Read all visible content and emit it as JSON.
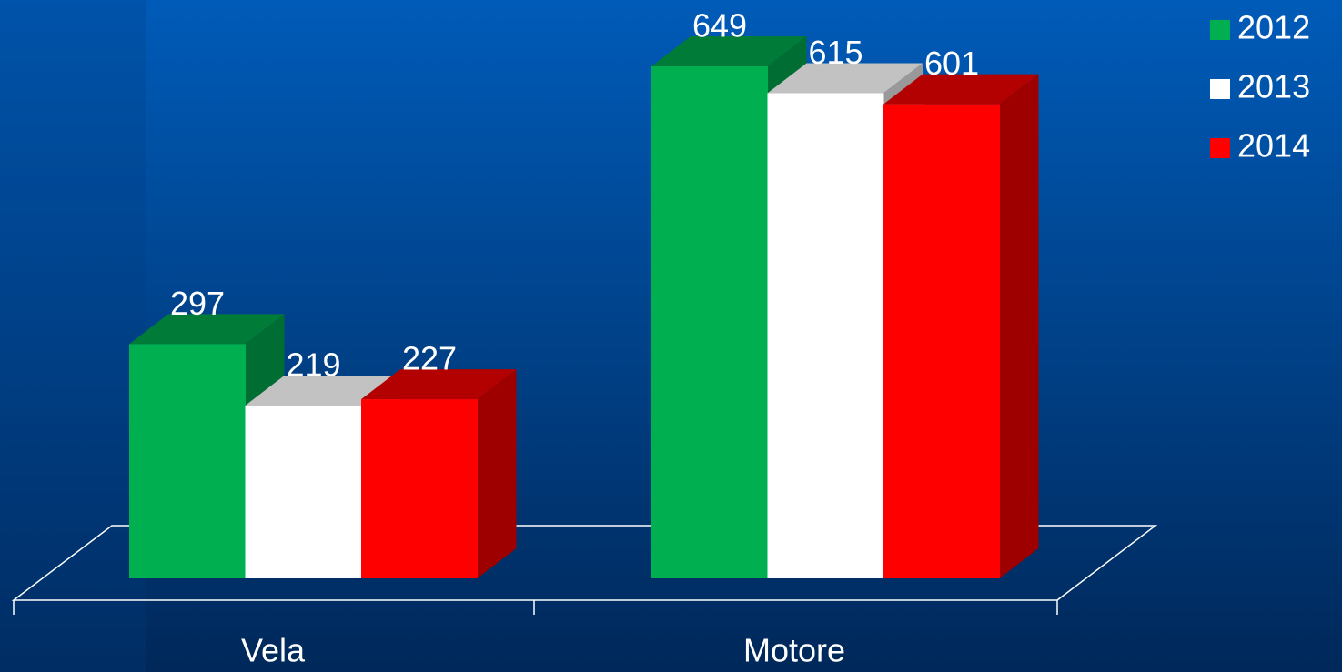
{
  "chart_data": {
    "type": "bar3d",
    "categories": [
      "Vela",
      "Motore"
    ],
    "series": [
      {
        "name": "2012",
        "color": "#00b050",
        "values": [
          297,
          649
        ]
      },
      {
        "name": "2013",
        "color": "#ffffff",
        "values": [
          219,
          615
        ]
      },
      {
        "name": "2014",
        "color": "#ff0000",
        "values": [
          227,
          601
        ]
      }
    ],
    "legend": "top-right"
  }
}
